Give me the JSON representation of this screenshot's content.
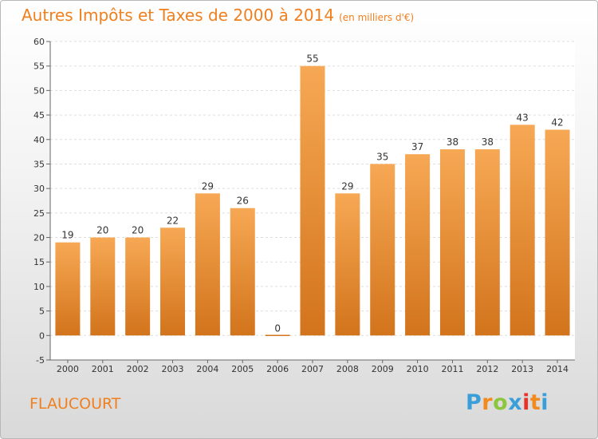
{
  "title": "Autres Impôts et Taxes de 2000 à 2014",
  "unit_note": "(en milliers d'€)",
  "commune": "FLAUCOURT",
  "logo": {
    "letters": [
      "P",
      "r",
      "o",
      "x",
      "i",
      "t",
      "i"
    ],
    "colors": [
      "#3a9fd9",
      "#f28a1d",
      "#8cc63f",
      "#3a9fd9",
      "#e5352b",
      "#f28a1d",
      "#3a9fd9"
    ]
  },
  "colors": {
    "bar_light": "#f7a854",
    "bar_dark": "#d2741c",
    "title": "#f07f1e"
  },
  "chart_data": {
    "type": "bar",
    "title": "Autres Impôts et Taxes de 2000 à 2014",
    "categories": [
      "2000",
      "2001",
      "2002",
      "2003",
      "2004",
      "2005",
      "2006",
      "2007",
      "2008",
      "2009",
      "2010",
      "2011",
      "2012",
      "2013",
      "2014"
    ],
    "values": [
      19,
      20,
      20,
      22,
      29,
      26,
      0,
      55,
      29,
      35,
      37,
      38,
      38,
      43,
      42
    ],
    "ylim": [
      -5,
      60
    ],
    "yticks": [
      -5,
      0,
      5,
      10,
      15,
      20,
      25,
      30,
      35,
      40,
      45,
      50,
      55,
      60
    ],
    "grid": true
  }
}
